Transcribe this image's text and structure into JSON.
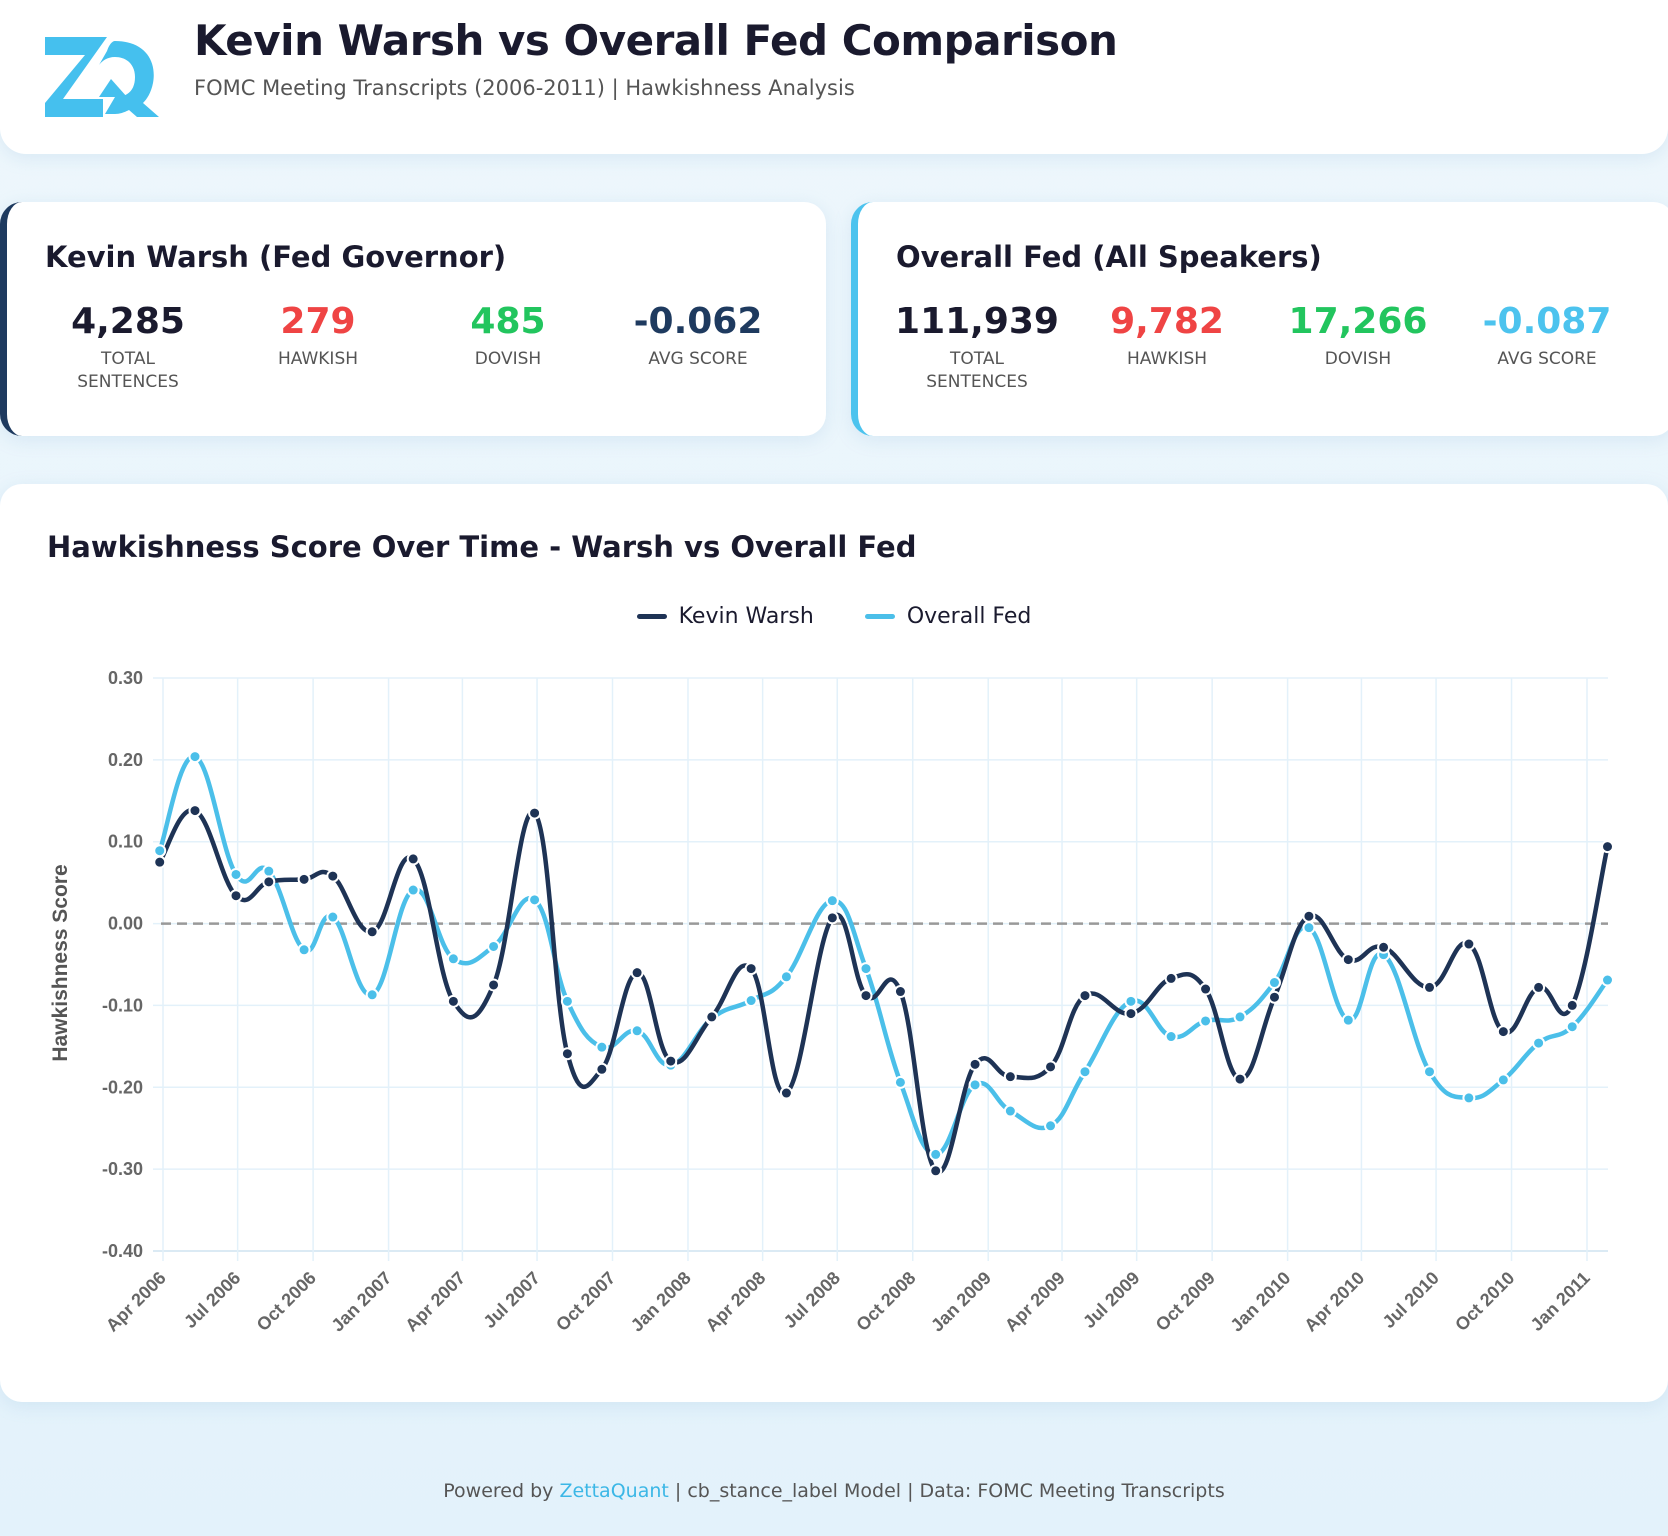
{
  "header": {
    "logo_text": "ZQ",
    "title": "Kevin Warsh vs Overall Fed Comparison",
    "subtitle": "FOMC Meeting Transcripts (2006-2011) | Hawkishness Analysis"
  },
  "warsh": {
    "title": "Kevin Warsh (Fed Governor)",
    "accent": "#1e3a5f",
    "stats": [
      {
        "value": "4,285",
        "label": "Total Sentences",
        "color": "#1a1a2e"
      },
      {
        "value": "279",
        "label": "Hawkish",
        "color": "#ef4444"
      },
      {
        "value": "485",
        "label": "Dovish",
        "color": "#22c55e"
      },
      {
        "value": "-0.062",
        "label": "Avg Score",
        "color": "#1e3a5f"
      }
    ]
  },
  "fed": {
    "title": "Overall Fed (All Speakers)",
    "accent": "#4cc3ee",
    "stats": [
      {
        "value": "111,939",
        "label": "Total Sentences",
        "color": "#1a1a2e"
      },
      {
        "value": "9,782",
        "label": "Hawkish",
        "color": "#ef4444"
      },
      {
        "value": "17,266",
        "label": "Dovish",
        "color": "#22c55e"
      },
      {
        "value": "-0.087",
        "label": "Avg Score",
        "color": "#4cc3ee"
      }
    ]
  },
  "chart_data": {
    "type": "line",
    "title": "Hawkishness Score Over Time - Warsh vs Overall Fed",
    "xlabel": "",
    "ylabel": "Hawkishness Score",
    "ylim": [
      -0.4,
      0.3
    ],
    "yticks": [
      "0.30",
      "0.20",
      "0.10",
      "0.00",
      "-0.10",
      "-0.20",
      "-0.30",
      "-0.40"
    ],
    "xticks": [
      "Apr 2006",
      "Jul 2006",
      "Oct 2006",
      "Jan 2007",
      "Apr 2007",
      "Jul 2007",
      "Oct 2007",
      "Jan 2008",
      "Apr 2008",
      "Jul 2008",
      "Oct 2008",
      "Jan 2009",
      "Apr 2009",
      "Jul 2009",
      "Oct 2009",
      "Jan 2010",
      "Apr 2010",
      "Jul 2010",
      "Oct 2010",
      "Jan 2011"
    ],
    "grid": true,
    "legend": "top-center",
    "reference_line": 0,
    "x": [
      "2006-03-28",
      "2006-05-10",
      "2006-06-29",
      "2006-08-08",
      "2006-09-20",
      "2006-10-25",
      "2006-12-12",
      "2007-01-31",
      "2007-03-21",
      "2007-05-09",
      "2007-06-28",
      "2007-08-07",
      "2007-09-18",
      "2007-10-31",
      "2007-12-11",
      "2008-01-30",
      "2008-03-18",
      "2008-04-30",
      "2008-06-25",
      "2008-08-05",
      "2008-09-16",
      "2008-10-29",
      "2008-12-16",
      "2009-01-28",
      "2009-03-18",
      "2009-04-29",
      "2009-06-24",
      "2009-08-12",
      "2009-09-23",
      "2009-11-04",
      "2009-12-16",
      "2010-01-27",
      "2010-03-16",
      "2010-04-28",
      "2010-06-23",
      "2010-08-10",
      "2010-09-21",
      "2010-11-03",
      "2010-12-14",
      "2011-01-26"
    ],
    "series": [
      {
        "name": "Kevin Warsh",
        "color": "#1e3355",
        "values": [
          0.075,
          0.138,
          0.034,
          0.051,
          0.054,
          0.058,
          -0.01,
          0.079,
          -0.095,
          -0.075,
          0.135,
          -0.159,
          -0.178,
          -0.06,
          -0.168,
          -0.114,
          -0.055,
          -0.207,
          0.007,
          -0.088,
          -0.083,
          -0.302,
          -0.172,
          -0.187,
          -0.175,
          -0.088,
          -0.11,
          -0.067,
          -0.08,
          -0.19,
          -0.09,
          0.009,
          -0.044,
          -0.029,
          -0.078,
          -0.025,
          -0.132,
          -0.078,
          -0.1,
          0.094
        ]
      },
      {
        "name": "Overall Fed",
        "color": "#4bbfe9",
        "values": [
          0.089,
          0.204,
          0.06,
          0.064,
          -0.032,
          0.008,
          -0.087,
          0.041,
          -0.043,
          -0.028,
          0.029,
          -0.095,
          -0.151,
          -0.131,
          -0.173,
          -0.116,
          -0.094,
          -0.065,
          0.028,
          -0.055,
          -0.194,
          -0.282,
          -0.197,
          -0.229,
          -0.247,
          -0.181,
          -0.095,
          -0.138,
          -0.119,
          -0.114,
          -0.072,
          -0.005,
          -0.118,
          -0.038,
          -0.181,
          -0.213,
          -0.191,
          -0.146,
          -0.126,
          -0.069
        ]
      }
    ]
  },
  "legend": {
    "items": [
      "Kevin Warsh",
      "Overall Fed"
    ]
  },
  "footer": {
    "prefix": "Powered by",
    "brand": "ZettaQuant",
    "rest": "| cb_stance_label Model | Data: FOMC Meeting Transcripts"
  }
}
